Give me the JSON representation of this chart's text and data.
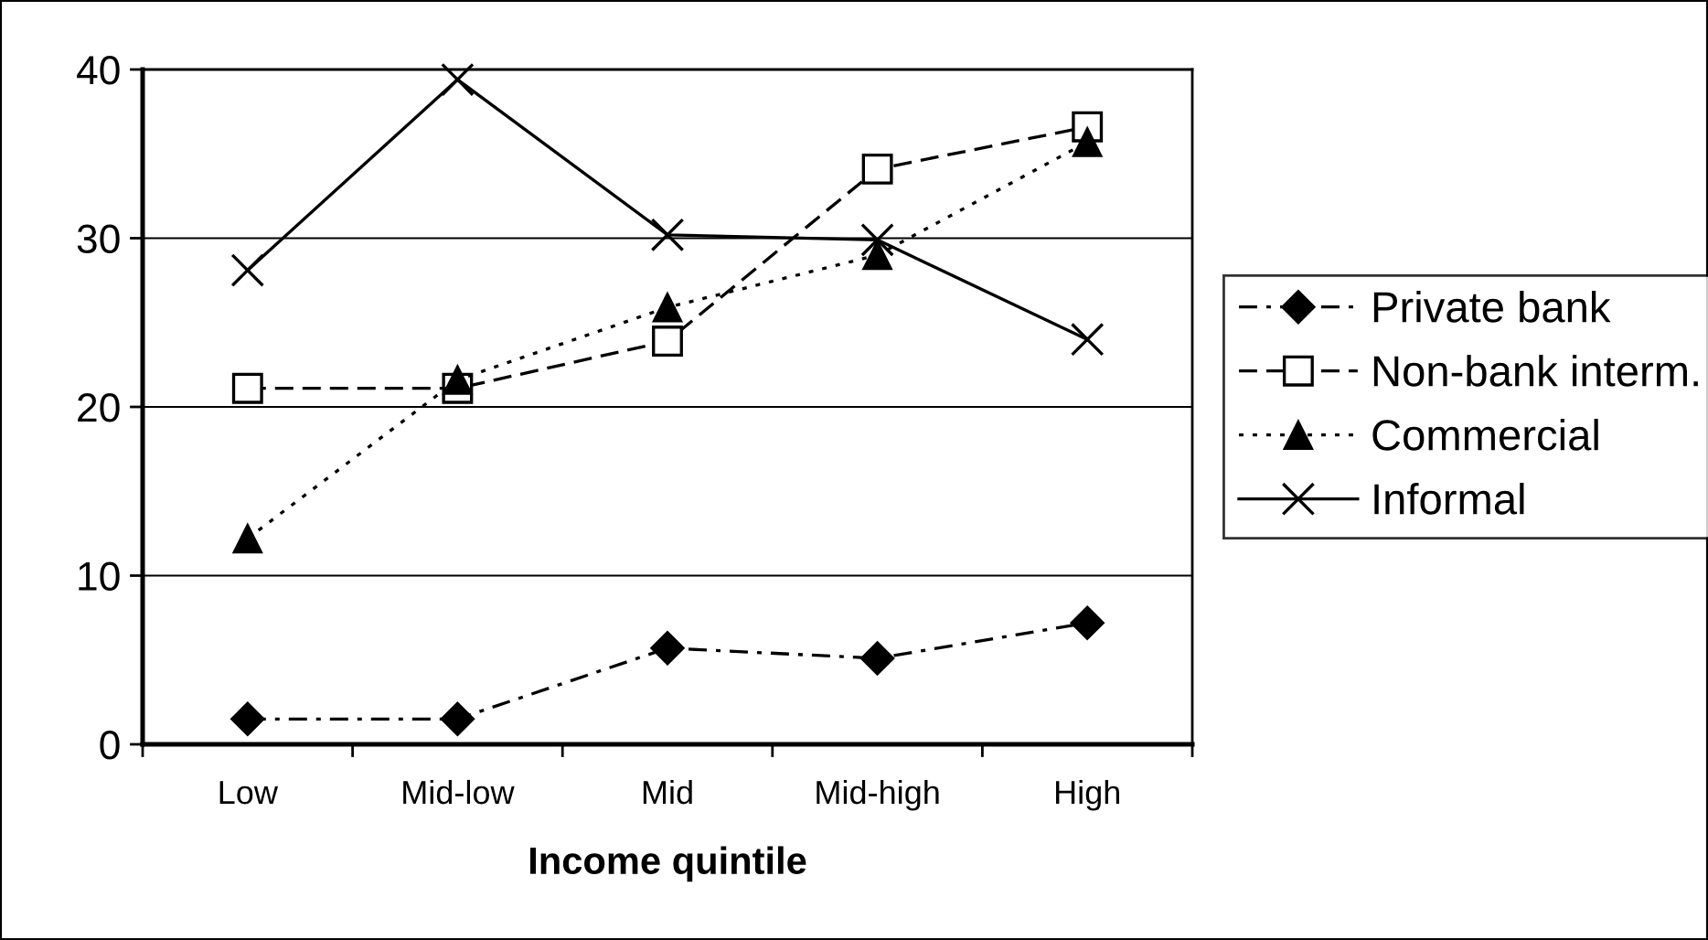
{
  "chart_data": {
    "type": "line",
    "xlabel": "Income quintile",
    "categories": [
      "Low",
      "Mid-low",
      "Mid",
      "Mid-high",
      "High"
    ],
    "series": [
      {
        "name": "Private bank",
        "color": "#000000",
        "marker": "diamond",
        "line_style": "dashdot",
        "values": [
          1.5,
          1.5,
          5.7,
          5.1,
          7.2
        ]
      },
      {
        "name": "Non-bank interm.",
        "color": "#000000",
        "marker": "square",
        "line_style": "dashed",
        "values": [
          21.1,
          21.1,
          23.9,
          34.1,
          36.6
        ]
      },
      {
        "name": "Commercial",
        "color": "#000000",
        "marker": "triangle",
        "line_style": "dotted",
        "values": [
          12.2,
          21.6,
          25.9,
          29.0,
          35.7
        ]
      },
      {
        "name": "Informal",
        "color": "#000000",
        "marker": "cross",
        "line_style": "solid",
        "values": [
          28.1,
          39.4,
          30.2,
          29.9,
          24.0
        ]
      }
    ],
    "ylim": [
      0,
      40
    ],
    "yticks": [
      0,
      10,
      20,
      30,
      40
    ],
    "grid": "y",
    "legend": "right"
  }
}
